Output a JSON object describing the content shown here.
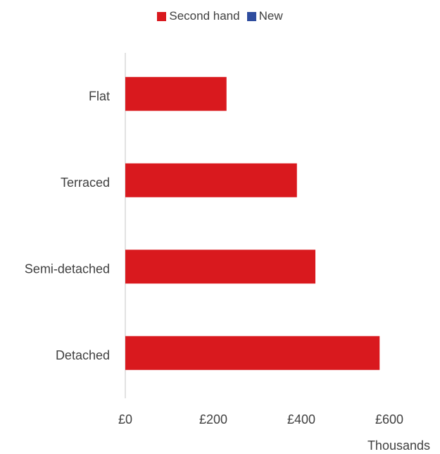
{
  "chart_data": {
    "type": "bar",
    "orientation": "horizontal",
    "categories": [
      "Flat",
      "Terraced",
      "Semi-detached",
      "Detached"
    ],
    "series": [
      {
        "name": "Second hand",
        "color": "#d9191e",
        "values": [
          230,
          390,
          432,
          578
        ]
      },
      {
        "name": "New",
        "color": "#2e4c9e",
        "values": [
          null,
          null,
          null,
          null
        ]
      }
    ],
    "xticks": [
      "£0",
      "£200",
      "£400",
      "£600"
    ],
    "xtick_values": [
      0,
      200,
      400,
      600
    ],
    "xlim": [
      0,
      650
    ],
    "unit_label": "Thousands",
    "legend_position": "top",
    "grid": false
  }
}
